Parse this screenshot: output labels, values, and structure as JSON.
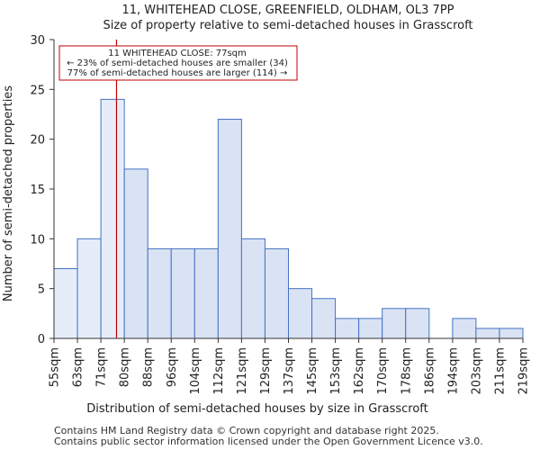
{
  "chart_data": {
    "type": "histogram",
    "title": "11, WHITEHEAD CLOSE, GREENFIELD, OLDHAM, OL3 7PP",
    "subtitle": "Size of property relative to semi-detached houses in Grasscroft",
    "xlabel": "Distribution of semi-detached houses by size in Grasscroft",
    "ylabel": "Number of semi-detached properties",
    "categories": [
      "55sqm",
      "63sqm",
      "71sqm",
      "80sqm",
      "88sqm",
      "96sqm",
      "104sqm",
      "112sqm",
      "121sqm",
      "129sqm",
      "137sqm",
      "145sqm",
      "153sqm",
      "162sqm",
      "170sqm",
      "178sqm",
      "186sqm",
      "194sqm",
      "203sqm",
      "211sqm",
      "219sqm"
    ],
    "values": [
      7,
      10,
      24,
      17,
      9,
      9,
      9,
      22,
      10,
      9,
      5,
      4,
      2,
      2,
      3,
      3,
      0,
      2,
      1,
      1
    ],
    "highlight_bins": 3,
    "ylim": [
      0,
      30
    ],
    "yticks": [
      0,
      5,
      10,
      15,
      20,
      25,
      30
    ],
    "marker_value_sqm": 77,
    "annotation": {
      "line1": "11 WHITEHEAD CLOSE: 77sqm",
      "line2": "← 23% of semi-detached houses are smaller (34)",
      "line3": "77% of semi-detached houses are larger (114) →"
    },
    "colors": {
      "bar_fill": "#dae3f3",
      "bar_highlight_fill": "#e6edf8",
      "bar_stroke": "#4472c4",
      "marker": "#c00000",
      "axis": "#333333"
    }
  },
  "footer": {
    "line1": "Contains HM Land Registry data © Crown copyright and database right 2025.",
    "line2": "Contains public sector information licensed under the Open Government Licence v3.0."
  }
}
